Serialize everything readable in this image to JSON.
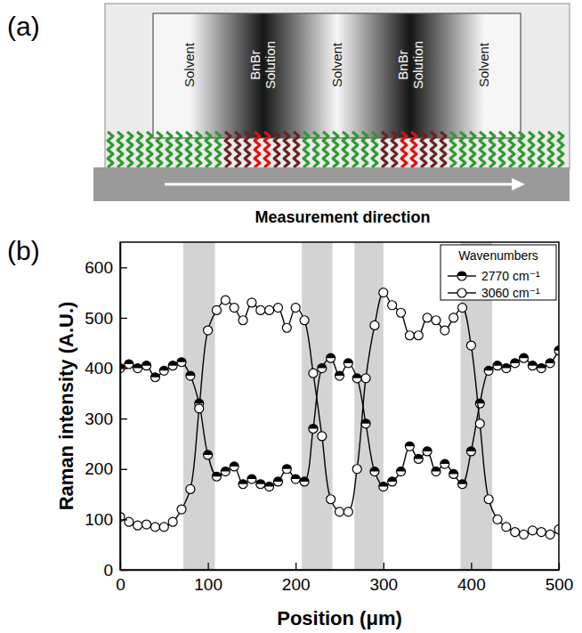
{
  "diagram": {
    "label": "(a)",
    "regions": [
      "Solvent",
      "BnBr Solution",
      "Solvent",
      "BnBr Solution",
      "Solvent"
    ],
    "caption": "Measurement direction"
  },
  "chart_data": {
    "type": "line",
    "panel_label": "(b)",
    "x_label": "Position (μm)",
    "y_label": "Raman intensity (A.U.)",
    "xlim": [
      0,
      500
    ],
    "ylim": [
      0,
      650
    ],
    "xticks": [
      0,
      100,
      200,
      300,
      400,
      500
    ],
    "yticks": [
      0,
      100,
      200,
      300,
      400,
      500,
      600
    ],
    "legend": "top-right",
    "legend_title": "Wavenumbers",
    "shaded_regions": [
      [
        72,
        108
      ],
      [
        207,
        242
      ],
      [
        267,
        300
      ],
      [
        388,
        424
      ]
    ],
    "x": [
      0,
      10,
      20,
      30,
      40,
      50,
      60,
      70,
      80,
      90,
      100,
      110,
      120,
      130,
      140,
      150,
      160,
      170,
      180,
      190,
      200,
      210,
      220,
      230,
      240,
      250,
      260,
      270,
      280,
      290,
      300,
      310,
      320,
      330,
      340,
      350,
      360,
      370,
      380,
      390,
      400,
      410,
      420,
      430,
      440,
      450,
      460,
      470,
      480,
      490,
      500
    ],
    "series": [
      {
        "name": "2770 cm⁻¹",
        "color": "#000000",
        "marker": "half-filled",
        "line_style": "solid",
        "values": [
          400,
          408,
          400,
          405,
          382,
          395,
          405,
          412,
          385,
          330,
          228,
          185,
          195,
          205,
          170,
          180,
          170,
          165,
          175,
          200,
          180,
          175,
          280,
          400,
          420,
          385,
          410,
          380,
          290,
          195,
          165,
          175,
          195,
          245,
          220,
          235,
          195,
          210,
          190,
          170,
          235,
          330,
          395,
          405,
          400,
          410,
          420,
          405,
          400,
          410,
          435
        ]
      },
      {
        "name": "3060 cm⁻¹",
        "color": "#000000",
        "marker": "open",
        "line_style": "solid",
        "values": [
          105,
          95,
          88,
          90,
          85,
          85,
          95,
          120,
          160,
          320,
          475,
          515,
          535,
          520,
          495,
          530,
          515,
          515,
          520,
          480,
          520,
          495,
          390,
          265,
          140,
          115,
          115,
          200,
          380,
          485,
          550,
          525,
          510,
          465,
          465,
          500,
          495,
          475,
          500,
          520,
          445,
          290,
          140,
          100,
          85,
          75,
          70,
          78,
          75,
          70,
          80
        ]
      }
    ]
  }
}
